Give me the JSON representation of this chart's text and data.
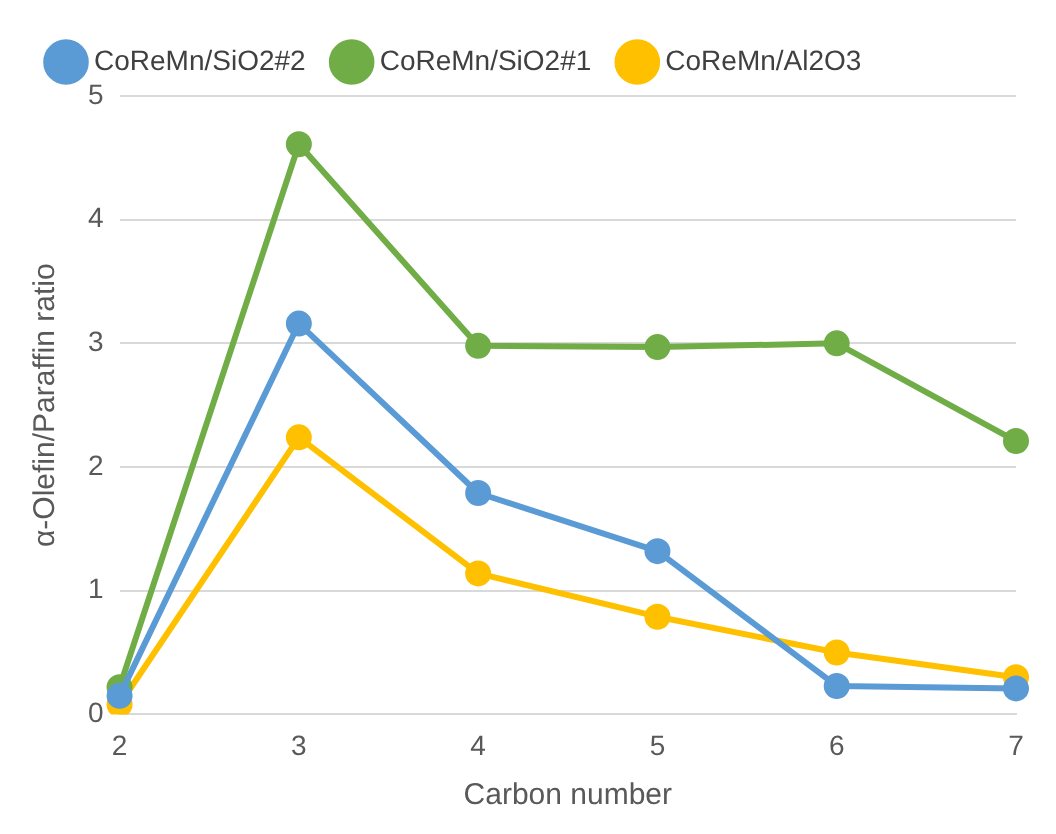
{
  "chart_data": {
    "type": "line",
    "xlabel": "Carbon number",
    "ylabel": "α-Olefin/Paraffin ratio",
    "categories": [
      "2",
      "3",
      "4",
      "5",
      "6",
      "7"
    ],
    "series": [
      {
        "name": "CoReMn/Al2O3",
        "color": "#ffc000",
        "values": [
          0.08,
          2.24,
          1.14,
          0.79,
          0.5,
          0.3
        ]
      },
      {
        "name": "CoReMn/SiO2#1",
        "color": "#70ad47",
        "values": [
          0.22,
          4.61,
          2.98,
          2.97,
          3.0,
          2.21
        ]
      },
      {
        "name": "CoReMn/SiO2#2",
        "color": "#5b9bd5",
        "values": [
          0.15,
          3.16,
          1.79,
          1.32,
          0.23,
          0.21
        ]
      }
    ],
    "ylim": [
      0,
      5
    ],
    "yticks": [
      0,
      1,
      2,
      3,
      4,
      5
    ],
    "grid": "y",
    "legend": "top",
    "marker": "circle",
    "line_style": "solid"
  }
}
